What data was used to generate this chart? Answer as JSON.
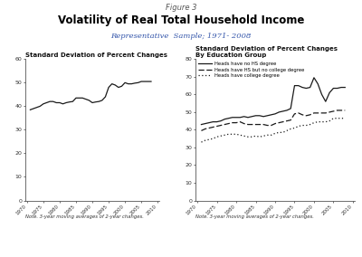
{
  "figure_title": "Figure 3",
  "main_title": "Volatility of Real Total Household Income",
  "subtitle": "Representative  Sample; 1971- 2008",
  "left_title": "Standard Deviation of Percent Changes",
  "right_title": "Standard Deviation of Percent Changes\nBy Education Group",
  "left_note": "Note. 3-year moving averages of 2-year changes.",
  "right_note": "Note. 3-year moving averages of 2-year changes.",
  "years_left": [
    1971,
    1972,
    1973,
    1974,
    1975,
    1976,
    1977,
    1978,
    1979,
    1980,
    1981,
    1982,
    1983,
    1984,
    1985,
    1986,
    1987,
    1988,
    1989,
    1990,
    1991,
    1992,
    1993,
    1994,
    1995,
    1996,
    1997,
    1998,
    1999,
    2000,
    2001,
    2002,
    2003,
    2004,
    2005,
    2006,
    2007,
    2008
  ],
  "overall": [
    38.5,
    39.0,
    39.5,
    40.0,
    41.0,
    41.5,
    42.0,
    42.0,
    41.5,
    41.5,
    41.0,
    41.5,
    41.8,
    42.0,
    43.5,
    43.5,
    43.5,
    43.0,
    42.5,
    41.5,
    41.8,
    42.0,
    42.5,
    44.0,
    48.0,
    49.5,
    49.0,
    48.0,
    48.5,
    50.0,
    49.5,
    49.5,
    49.8,
    50.0,
    50.5,
    50.5,
    50.5,
    50.5
  ],
  "years_right": [
    1971,
    1972,
    1973,
    1974,
    1975,
    1976,
    1977,
    1978,
    1979,
    1980,
    1981,
    1982,
    1983,
    1984,
    1985,
    1986,
    1987,
    1988,
    1989,
    1990,
    1991,
    1992,
    1993,
    1994,
    1995,
    1996,
    1997,
    1998,
    1999,
    2000,
    2001,
    2002,
    2003,
    2004,
    2005,
    2006,
    2007,
    2008
  ],
  "no_hs": [
    43.0,
    43.5,
    44.0,
    44.5,
    44.5,
    45.0,
    46.0,
    46.5,
    47.0,
    47.0,
    47.0,
    47.5,
    47.0,
    47.5,
    48.0,
    48.0,
    47.5,
    48.0,
    48.5,
    49.0,
    50.0,
    50.5,
    51.0,
    52.0,
    65.0,
    65.0,
    64.0,
    63.5,
    64.0,
    69.5,
    66.0,
    60.0,
    56.0,
    61.0,
    63.5,
    63.5,
    64.0,
    64.0
  ],
  "hs_no_college": [
    39.5,
    40.5,
    41.0,
    41.5,
    42.0,
    42.5,
    43.0,
    43.5,
    44.0,
    44.0,
    44.5,
    43.5,
    43.0,
    43.0,
    43.0,
    43.0,
    43.0,
    42.5,
    42.5,
    43.5,
    44.0,
    44.5,
    45.0,
    45.5,
    49.0,
    49.5,
    48.5,
    48.0,
    48.5,
    49.5,
    49.5,
    49.5,
    49.5,
    50.0,
    50.5,
    51.0,
    51.0,
    51.0
  ],
  "college": [
    33.0,
    34.0,
    34.5,
    35.0,
    36.0,
    36.5,
    37.0,
    37.5,
    37.5,
    37.5,
    37.0,
    36.5,
    36.0,
    36.0,
    36.5,
    36.0,
    36.5,
    37.0,
    37.0,
    38.0,
    38.5,
    38.5,
    39.5,
    40.5,
    41.0,
    42.0,
    42.5,
    42.5,
    43.0,
    44.0,
    44.5,
    44.5,
    44.5,
    45.0,
    46.5,
    46.5,
    46.5,
    46.5
  ],
  "left_ylim": [
    0,
    60
  ],
  "left_yticks": [
    0,
    10,
    20,
    30,
    40,
    50,
    60
  ],
  "left_xticks": [
    1970,
    1975,
    1980,
    1985,
    1990,
    1995,
    2000,
    2005,
    2010
  ],
  "right_ylim": [
    0,
    80
  ],
  "right_yticks": [
    0,
    10,
    20,
    30,
    40,
    50,
    60,
    70,
    80
  ],
  "right_xticks": [
    1970,
    1975,
    1980,
    1985,
    1990,
    1995,
    2000,
    2005,
    2010
  ],
  "line_color": "#1a1a1a",
  "legend_labels": [
    "Heads have no HS degree",
    "Heads have HS but no college degree",
    "Heads have college degree"
  ],
  "bg_color": "#ffffff",
  "title_color": "#000000",
  "subtitle_color": "#3355aa",
  "fig_title_color": "#555555"
}
